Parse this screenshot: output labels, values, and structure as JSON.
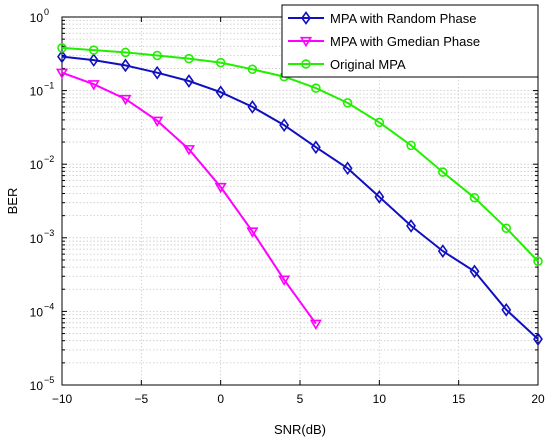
{
  "chart_data": {
    "type": "line",
    "xlabel": "SNR(dB)",
    "ylabel": "BER",
    "xlim": [
      -10,
      20
    ],
    "ylim": [
      1e-05,
      1
    ],
    "yscale": "log",
    "grid": true,
    "legend_position": "top-right",
    "x_ticks": [
      {
        "value": -10,
        "label": "−10"
      },
      {
        "value": -5,
        "label": "−5"
      },
      {
        "value": 0,
        "label": "0"
      },
      {
        "value": 5,
        "label": "5"
      },
      {
        "value": 10,
        "label": "10"
      },
      {
        "value": 15,
        "label": "15"
      },
      {
        "value": 20,
        "label": "20"
      }
    ],
    "y_ticks": [
      {
        "value": 1,
        "base": "10",
        "exp": "0"
      },
      {
        "value": 0.1,
        "base": "10",
        "exp": "−1"
      },
      {
        "value": 0.01,
        "base": "10",
        "exp": "−2"
      },
      {
        "value": 0.001,
        "base": "10",
        "exp": "−3"
      },
      {
        "value": 0.0001,
        "base": "10",
        "exp": "−4"
      },
      {
        "value": 1e-05,
        "base": "10",
        "exp": "−5"
      }
    ],
    "series": [
      {
        "name": "MPA with Random Phase",
        "color": "#1010c0",
        "marker": "diamond",
        "x": [
          -10,
          -8,
          -6,
          -4,
          -2,
          0,
          2,
          4,
          6,
          8,
          10,
          12,
          14,
          16,
          18,
          20
        ],
        "y": [
          0.29,
          0.26,
          0.22,
          0.175,
          0.135,
          0.095,
          0.06,
          0.034,
          0.017,
          0.0088,
          0.0036,
          0.00145,
          0.00066,
          0.00035,
          0.000105,
          4.2e-05
        ]
      },
      {
        "name": "MPA with Gmedian Phase",
        "color": "#ff00ff",
        "marker": "triangle-down",
        "x": [
          -10,
          -8,
          -6,
          -4,
          -2,
          0,
          2,
          4,
          6
        ],
        "y": [
          0.175,
          0.122,
          0.077,
          0.039,
          0.016,
          0.0049,
          0.00122,
          0.00027,
          6.8e-05
        ]
      },
      {
        "name": "Original MPA",
        "color": "#22ee00",
        "marker": "circle",
        "x": [
          -10,
          -8,
          -6,
          -4,
          -2,
          0,
          2,
          4,
          6,
          8,
          10,
          12,
          14,
          16,
          18,
          20
        ],
        "y": [
          0.38,
          0.355,
          0.33,
          0.3,
          0.272,
          0.24,
          0.195,
          0.155,
          0.108,
          0.068,
          0.037,
          0.018,
          0.0078,
          0.0035,
          0.00135,
          0.00048
        ]
      }
    ]
  }
}
